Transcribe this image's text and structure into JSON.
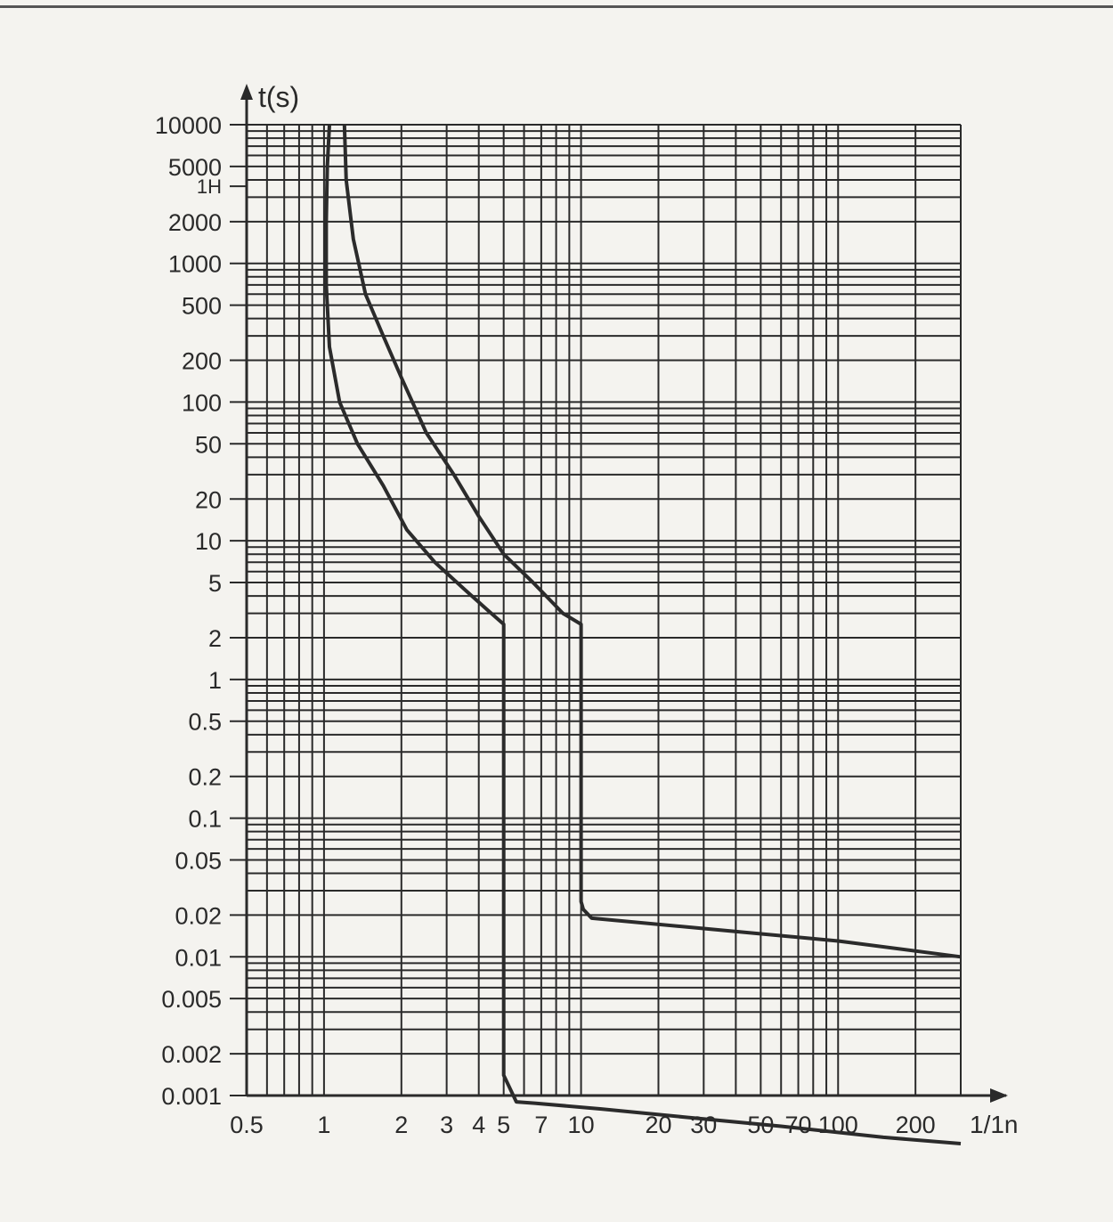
{
  "chart_data": {
    "type": "line",
    "x_scale": "log",
    "y_scale": "log",
    "xlabel": "1/1n",
    "ylabel": "t(s)",
    "xlim": [
      0.5,
      300
    ],
    "ylim": [
      0.001,
      10000
    ],
    "grid": true,
    "x_ticks": [
      "0.5",
      "1",
      "2",
      "3",
      "4",
      "5",
      "7",
      "10",
      "20",
      "30",
      "50",
      "70",
      "100",
      "200"
    ],
    "y_ticks": [
      "10000",
      "5000",
      "1H",
      "2000",
      "1000",
      "500",
      "200",
      "100",
      "50",
      "20",
      "10",
      "5",
      "2",
      "1",
      "0.5",
      "0.2",
      "0.1",
      "0.05",
      "0.02",
      "0.01",
      "0.005",
      "0.002",
      "0.001"
    ],
    "series": [
      {
        "x": [
          1.05,
          1.03,
          1.02,
          1.02,
          1.05,
          1.15,
          1.35,
          1.7,
          2.1,
          2.7,
          3.5,
          4.3,
          5,
          5,
          5.6,
          6.6,
          12,
          25,
          60,
          150,
          300
        ],
        "y": [
          10000,
          5000,
          2000,
          700,
          250,
          100,
          50,
          25,
          12,
          7,
          4.5,
          3.2,
          2.5,
          0.0014,
          0.0009,
          0.00088,
          0.0008,
          0.0007,
          0.0006,
          0.0005,
          0.00045
        ]
      },
      {
        "x": [
          1.2,
          1.22,
          1.3,
          1.45,
          1.7,
          2,
          2.5,
          3.2,
          4,
          5,
          6.5,
          8.5,
          10,
          10,
          10.2,
          11,
          30,
          100,
          300
        ],
        "y": [
          10000,
          4000,
          1500,
          600,
          300,
          150,
          60,
          30,
          15,
          8,
          5,
          3,
          2.5,
          0.025,
          0.022,
          0.019,
          0.016,
          0.013,
          0.01
        ]
      }
    ]
  }
}
